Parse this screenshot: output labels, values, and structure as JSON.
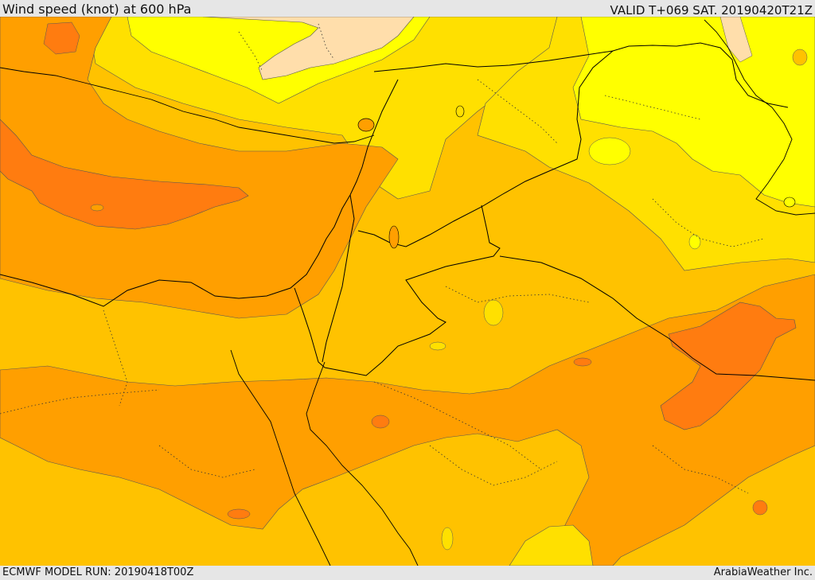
{
  "header": {
    "title": "Wind speed (knot) at 600 hPa",
    "valid_time": "VALID T+069 SAT. 20190420T21Z"
  },
  "footer": {
    "model_run": "ECMWF MODEL RUN: 20190418T00Z",
    "credit": "ArabiaWeather Inc."
  },
  "map": {
    "field": "wind speed at 600 hPa",
    "legend_shown": false,
    "colors": {
      "pale_orange": "#ffdeab",
      "bright_yellow": "#ffff00",
      "yellow": "#ffe000",
      "gold": "#ffc200",
      "orange": "#ff9f00",
      "deep_orange": "#ff7c10",
      "coast_line": "#000000",
      "contour_line": "#555555"
    }
  }
}
